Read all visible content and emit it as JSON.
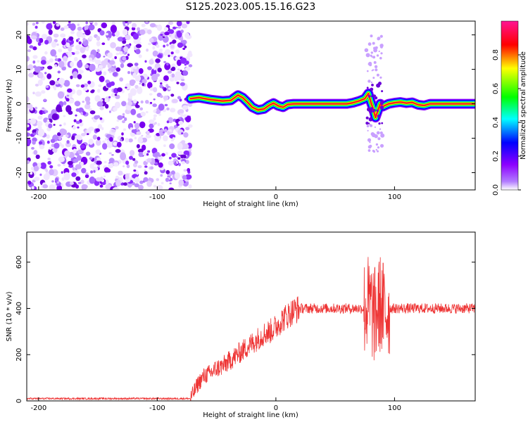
{
  "title": "S125.2023.005.15.16.G23",
  "chart_data": [
    {
      "type": "heatmap",
      "xlabel": "Height of straight line (km)",
      "ylabel": "Frequency (Hz)",
      "xlim": [
        -210,
        168
      ],
      "ylim": [
        -25,
        24
      ],
      "xticks": [
        -200,
        -100,
        0,
        100
      ],
      "yticks": [
        -20,
        -10,
        0,
        10,
        20
      ],
      "grid": false,
      "noise_region": [
        -210,
        -72
      ],
      "frequency_trace": {
        "x": [
          -72,
          -65,
          -55,
          -45,
          -38,
          -32,
          -28,
          -24,
          -20,
          -15,
          -10,
          -6,
          -2,
          2,
          6,
          10,
          15,
          20,
          30,
          40,
          50,
          60,
          65,
          70,
          75,
          78,
          80,
          82,
          84,
          86,
          88,
          90,
          95,
          100,
          105,
          110,
          115,
          120,
          125,
          130,
          140,
          150,
          160,
          168
        ],
        "y": [
          1.5,
          1.8,
          1.2,
          0.8,
          1.0,
          2.5,
          1.8,
          0.5,
          -1.0,
          -1.8,
          -1.5,
          -0.5,
          0.2,
          -0.6,
          -1.0,
          -0.2,
          0.0,
          0.0,
          0.0,
          0.0,
          0.0,
          0.0,
          0.3,
          0.8,
          1.5,
          3.0,
          0.5,
          -1.5,
          -4.0,
          -2.0,
          0.0,
          -0.8,
          0.0,
          0.3,
          0.5,
          0.2,
          0.4,
          -0.3,
          -0.5,
          0.0,
          0.0,
          0.0,
          0.0,
          0.0
        ]
      },
      "colorbar": {
        "label": "Normalized spectral amplitude",
        "range": [
          0,
          1
        ],
        "ticks": [
          0.0,
          0.2,
          0.4,
          0.6,
          0.8
        ],
        "tick_labels": [
          "0.0",
          "0.2",
          "0.4",
          "0.6",
          "0.8"
        ],
        "colormap": [
          "#ffffff",
          "#8c00ff",
          "#0000ff",
          "#00ffff",
          "#00ff00",
          "#ffff00",
          "#ff0000",
          "#ff1493"
        ]
      }
    },
    {
      "type": "line",
      "xlabel": "Height of straight line (km)",
      "ylabel": "SNR (10 * v/v)",
      "xlim": [
        -210,
        168
      ],
      "ylim": [
        0,
        730
      ],
      "xticks": [
        -200,
        -100,
        0,
        100
      ],
      "yticks": [
        0,
        200,
        400,
        600
      ],
      "grid": false,
      "line_color": "#ee3333",
      "series": [
        {
          "x": [
            -210,
            -190,
            -170,
            -150,
            -130,
            -110,
            -90,
            -72,
            -65,
            -60,
            -55,
            -50,
            -45,
            -40,
            -35,
            -30,
            -25,
            -20,
            -15,
            -10,
            -5,
            0,
            5,
            10,
            15,
            20,
            25,
            30,
            35,
            40,
            45,
            50,
            55,
            60,
            65,
            70,
            75,
            78,
            80,
            82,
            84,
            86,
            88,
            90,
            92,
            95,
            100,
            110,
            120,
            130,
            140,
            150,
            160,
            168
          ],
          "y": [
            10,
            10,
            10,
            10,
            10,
            10,
            10,
            10,
            80,
            110,
            120,
            140,
            150,
            170,
            190,
            210,
            230,
            250,
            270,
            290,
            300,
            320,
            350,
            370,
            390,
            400,
            400,
            400,
            400,
            400,
            400,
            400,
            400,
            400,
            400,
            400,
            400,
            420,
            400,
            380,
            360,
            400,
            420,
            400,
            380,
            400,
            400,
            400,
            400,
            400,
            400,
            400,
            400,
            400
          ]
        }
      ]
    }
  ]
}
